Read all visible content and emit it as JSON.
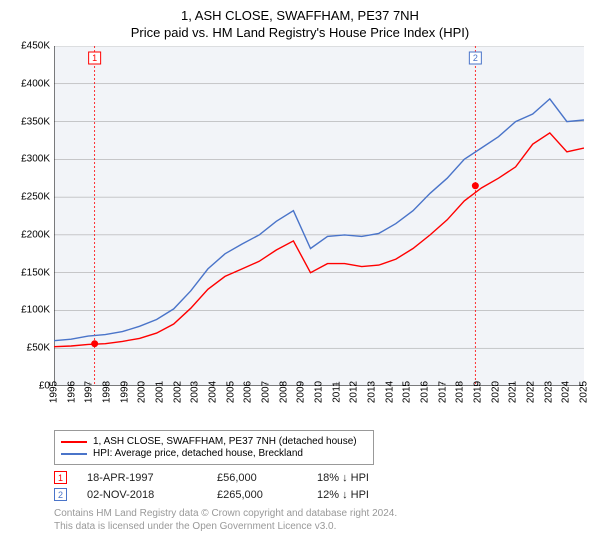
{
  "title": "1, ASH CLOSE, SWAFFHAM, PE37 7NH",
  "subtitle": "Price paid vs. HM Land Registry's House Price Index (HPI)",
  "chart": {
    "type": "line",
    "background_color": "#ffffff",
    "plot_bg_color": "#f2f4f8",
    "grid_color": "#999999",
    "axis_color": "#000000",
    "ylim": [
      0,
      450000
    ],
    "ytick_step": 50000,
    "yticks": [
      "£0",
      "£50K",
      "£100K",
      "£150K",
      "£200K",
      "£250K",
      "£300K",
      "£350K",
      "£400K",
      "£450K"
    ],
    "x_years": [
      1995,
      1996,
      1997,
      1998,
      1999,
      2000,
      2001,
      2002,
      2003,
      2004,
      2005,
      2006,
      2007,
      2008,
      2009,
      2010,
      2011,
      2012,
      2013,
      2014,
      2015,
      2016,
      2017,
      2018,
      2019,
      2020,
      2021,
      2022,
      2023,
      2024,
      2025
    ],
    "series": [
      {
        "name": "price_paid",
        "label": "1, ASH CLOSE, SWAFFHAM, PE37 7NH (detached house)",
        "color": "#ff0000",
        "line_width": 1.4,
        "xrange": [
          1995,
          2025
        ],
        "values": [
          52,
          53,
          55,
          56,
          59,
          63,
          70,
          82,
          103,
          128,
          145,
          155,
          165,
          180,
          192,
          150,
          162,
          162,
          158,
          160,
          168,
          182,
          200,
          220,
          245,
          262,
          275,
          290,
          320,
          335,
          310,
          315
        ]
      },
      {
        "name": "hpi",
        "label": "HPI: Average price, detached house, Breckland",
        "color": "#4a74c9",
        "line_width": 1.4,
        "xrange": [
          1995,
          2025
        ],
        "values": [
          60,
          62,
          66,
          68,
          72,
          79,
          88,
          102,
          126,
          155,
          175,
          188,
          200,
          218,
          232,
          182,
          198,
          200,
          198,
          202,
          215,
          232,
          255,
          275,
          300,
          315,
          330,
          350,
          360,
          380,
          350,
          352
        ]
      }
    ],
    "sale_markers": [
      {
        "index": 1,
        "year": 1997.3,
        "value": 56000,
        "color": "#ff0000",
        "box_border": "#ff0000"
      },
      {
        "index": 2,
        "year": 2018.85,
        "value": 265000,
        "color": "#ff0000",
        "box_border": "#4a74c9"
      }
    ],
    "vline_color": "#ff0000",
    "vline_dash": "2,2"
  },
  "sales": [
    {
      "marker": "1",
      "border": "#ff0000",
      "date": "18-APR-1997",
      "price": "£56,000",
      "hpi": "18% ↓ HPI"
    },
    {
      "marker": "2",
      "border": "#4a74c9",
      "date": "02-NOV-2018",
      "price": "£265,000",
      "hpi": "12% ↓ HPI"
    }
  ],
  "footer_line1": "Contains HM Land Registry data © Crown copyright and database right 2024.",
  "footer_line2": "This data is licensed under the Open Government Licence v3.0."
}
